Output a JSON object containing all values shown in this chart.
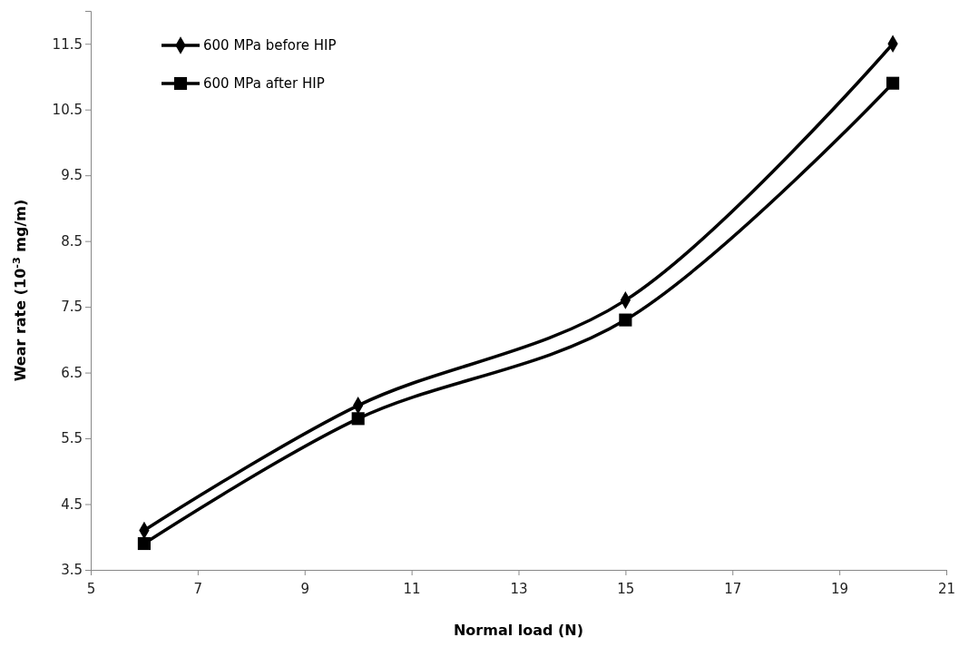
{
  "chart_data": {
    "type": "line",
    "xlabel": "Normal load (N)",
    "ylabel": "Wear rate (10$^{-3}$ mg/m)",
    "x": [
      6,
      10,
      15,
      20
    ],
    "series": [
      {
        "name": "600 MPa before HIP",
        "color": "#000000",
        "marker": "diamond",
        "values": [
          4.1,
          6.0,
          7.6,
          11.5
        ]
      },
      {
        "name": "600 MPa after HIP",
        "color": "#000000",
        "marker": "square",
        "values": [
          3.9,
          5.8,
          7.3,
          10.9
        ]
      }
    ],
    "xlim": [
      5,
      21
    ],
    "xticks": [
      5,
      7,
      9,
      11,
      13,
      15,
      17,
      19,
      21
    ],
    "ylim": [
      3.5,
      12
    ],
    "yticks": [
      3.5,
      4.5,
      5.5,
      6.5,
      7.5,
      8.5,
      9.5,
      10.5,
      11.5
    ],
    "grid": false,
    "legend": "top left",
    "line_style": "solid"
  }
}
